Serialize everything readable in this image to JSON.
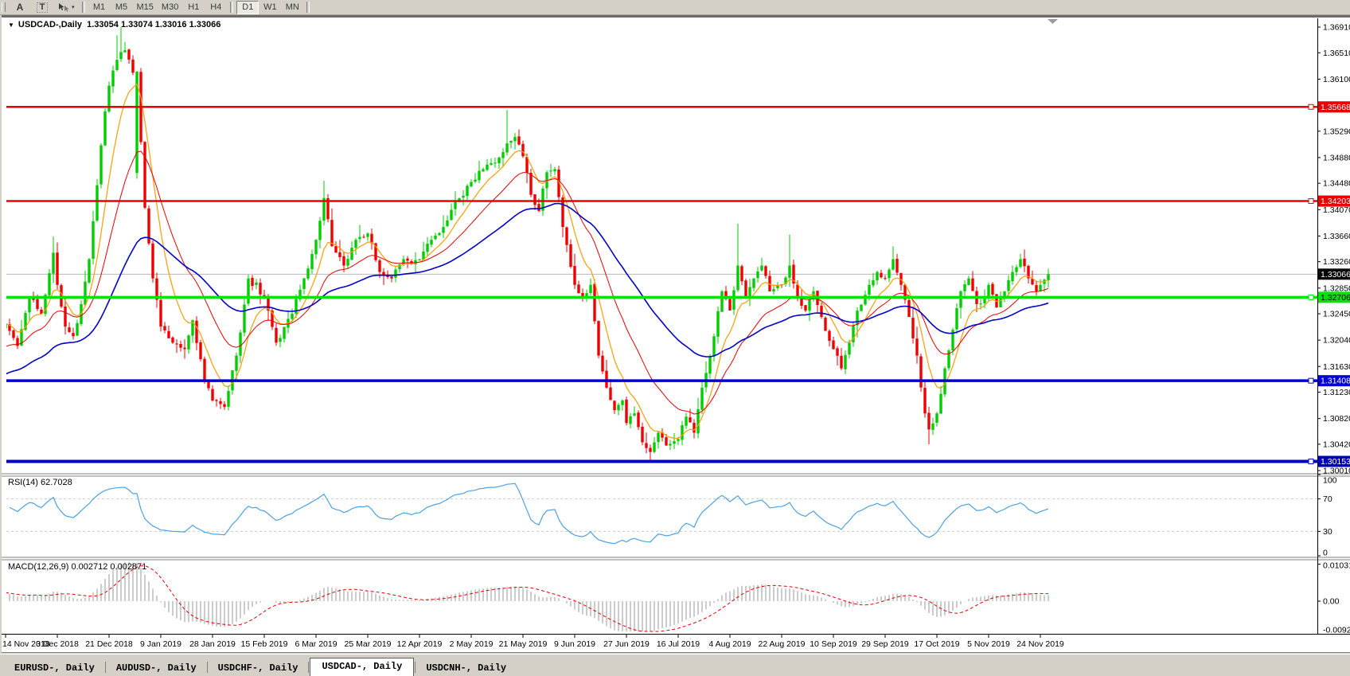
{
  "toolbar": {
    "font_tool": "A",
    "text_tool": "T",
    "timeframes": [
      "M1",
      "M5",
      "M15",
      "M30",
      "H1",
      "H4",
      "D1",
      "W1",
      "MN"
    ],
    "active_timeframe": "D1"
  },
  "window_title": {
    "symbol": "USDCAD-,Daily",
    "ohlc": "1.33054 1.33074 1.33016 1.33066"
  },
  "rsi_panel": {
    "label": "RSI(14) 62.7028",
    "value": 62.7028,
    "line_color": "#4da1e0",
    "level_color": "#cccccc",
    "ticks": [
      {
        "value": 100,
        "label": "100"
      },
      {
        "value": 70,
        "label": "70",
        "dashed": true
      },
      {
        "value": 30,
        "label": "30",
        "dashed": true
      },
      {
        "value": 0,
        "label": "0"
      }
    ]
  },
  "macd_panel": {
    "label": "MACD(12,26,9) 0.002712 0.002871",
    "main_value": 0.002712,
    "signal_value": 0.002871,
    "hist_color": "#c0c0c0",
    "signal_color": "#e00000",
    "ticks": [
      {
        "value": 0.010311,
        "label": "0.010311"
      },
      {
        "value": 0,
        "label": "0.00"
      },
      {
        "value": -0.0092,
        "label": "-0.00920"
      }
    ]
  },
  "time_axis": {
    "labels": [
      "14 Nov 2018",
      "3 Dec 2018",
      "21 Dec 2018",
      "9 Jan 2019",
      "28 Jan 2019",
      "15 Feb 2019",
      "6 Mar 2019",
      "25 Mar 2019",
      "12 Apr 2019",
      "2 May 2019",
      "21 May 2019",
      "9 Jun 2019",
      "27 Jun 2019",
      "16 Jul 2019",
      "4 Aug 2019",
      "22 Aug 2019",
      "10 Sep 2019",
      "29 Sep 2019",
      "17 Oct 2019",
      "5 Nov 2019",
      "24 Nov 2019"
    ]
  },
  "price_axis": {
    "ticks": [
      "1.36910",
      "1.36510",
      "1.36100",
      "1.35290",
      "1.34880",
      "1.34480",
      "1.34070",
      "1.33660",
      "1.33260",
      "1.32850",
      "1.32450",
      "1.32040",
      "1.31630",
      "1.31230",
      "1.30820",
      "1.30420",
      "1.30010"
    ]
  },
  "tabs": {
    "items": [
      "EURUSD-, Daily",
      "AUDUSD-, Daily",
      "USDCHF-, Daily",
      "USDCAD-, Daily",
      "USDCNH-, Daily"
    ],
    "active": "USDCAD-, Daily"
  },
  "chart_data": {
    "type": "candlestick",
    "symbol": "USDCAD-",
    "timeframe": "Daily",
    "last_ohlc": {
      "open": "1.33054",
      "high": "1.33074",
      "low": "1.33016",
      "close": "1.33066"
    },
    "bars": 263,
    "up_color": "#00cd00",
    "down_color": "#ef0000",
    "current_price": {
      "value": 1.33066,
      "label": "1.33066",
      "line_color": "#b8b8b8",
      "box_color": "#000000",
      "text_color": "#ffffff"
    },
    "horizontal_levels": [
      {
        "price": 1.35668,
        "label": "1.35668",
        "color": "#e80000",
        "thickness": 2.5,
        "text_color": "#ffffff"
      },
      {
        "price": 1.34203,
        "label": "1.34203",
        "color": "#e80000",
        "thickness": 2.5,
        "text_color": "#ffffff"
      },
      {
        "price": 1.32706,
        "label": "1.32706",
        "color": "#00e400",
        "thickness": 3.5,
        "text_color": "#000000"
      },
      {
        "price": 1.31408,
        "label": "1.31408",
        "color": "#0000d6",
        "thickness": 3.5,
        "text_color": "#ffffff"
      },
      {
        "price": 1.30153,
        "label": "1.30153",
        "color": "#0000ba",
        "thickness": 4,
        "text_color": "#ffffff"
      }
    ],
    "moving_averages": [
      {
        "name": "fast-ma",
        "period": 8,
        "color": "#ff9c00",
        "width": 1.2,
        "seed": null
      },
      {
        "name": "mid-ma",
        "period": 20,
        "color": "#e40000",
        "width": 1,
        "seed": 1.319
      },
      {
        "name": "slow-ma",
        "period": 50,
        "color": "#0000c8",
        "width": 1.6,
        "seed": 1.3148
      }
    ],
    "close_anchors": [
      [
        0,
        1.323
      ],
      [
        3,
        1.3195
      ],
      [
        6,
        1.327
      ],
      [
        9,
        1.3245
      ],
      [
        12,
        1.334
      ],
      [
        13,
        1.329
      ],
      [
        15,
        1.3225
      ],
      [
        17,
        1.321
      ],
      [
        19,
        1.326
      ],
      [
        21,
        1.333
      ],
      [
        23,
        1.3445
      ],
      [
        25,
        1.356
      ],
      [
        26,
        1.36
      ],
      [
        28,
        1.364
      ],
      [
        30,
        1.3655
      ],
      [
        32,
        1.362
      ],
      [
        33,
        1.3622
      ],
      [
        35,
        1.341
      ],
      [
        37,
        1.33
      ],
      [
        39,
        1.3225
      ],
      [
        42,
        1.32
      ],
      [
        45,
        1.319
      ],
      [
        47,
        1.3235
      ],
      [
        50,
        1.314
      ],
      [
        52,
        1.311
      ],
      [
        55,
        1.31
      ],
      [
        58,
        1.318
      ],
      [
        61,
        1.33
      ],
      [
        65,
        1.327
      ],
      [
        68,
        1.32
      ],
      [
        72,
        1.3245
      ],
      [
        75,
        1.33
      ],
      [
        78,
        1.336
      ],
      [
        80,
        1.3425
      ],
      [
        82,
        1.335
      ],
      [
        85,
        1.332
      ],
      [
        88,
        1.336
      ],
      [
        91,
        1.337
      ],
      [
        94,
        1.331
      ],
      [
        97,
        1.33
      ],
      [
        100,
        1.333
      ],
      [
        104,
        1.333
      ],
      [
        107,
        1.336
      ],
      [
        110,
        1.338
      ],
      [
        113,
        1.342
      ],
      [
        117,
        1.345
      ],
      [
        120,
        1.347
      ],
      [
        123,
        1.348
      ],
      [
        126,
        1.351
      ],
      [
        128,
        1.352
      ],
      [
        130,
        1.349
      ],
      [
        132,
        1.343
      ],
      [
        134,
        1.3405
      ],
      [
        136,
        1.3465
      ],
      [
        138,
        1.347
      ],
      [
        140,
        1.338
      ],
      [
        143,
        1.329
      ],
      [
        145,
        1.327
      ],
      [
        147,
        1.329
      ],
      [
        149,
        1.318
      ],
      [
        151,
        1.313
      ],
      [
        153,
        1.3095
      ],
      [
        155,
        1.311
      ],
      [
        156,
        1.3075
      ],
      [
        158,
        1.309
      ],
      [
        160,
        1.3045
      ],
      [
        162,
        1.303
      ],
      [
        164,
        1.306
      ],
      [
        166,
        1.304
      ],
      [
        169,
        1.305
      ],
      [
        171,
        1.3085
      ],
      [
        173,
        1.306
      ],
      [
        175,
        1.313
      ],
      [
        178,
        1.321
      ],
      [
        180,
        1.328
      ],
      [
        182,
        1.325
      ],
      [
        184,
        1.332
      ],
      [
        186,
        1.327
      ],
      [
        188,
        1.33
      ],
      [
        190,
        1.332
      ],
      [
        192,
        1.328
      ],
      [
        195,
        1.329
      ],
      [
        197,
        1.332
      ],
      [
        199,
        1.327
      ],
      [
        201,
        1.325
      ],
      [
        203,
        1.328
      ],
      [
        205,
        1.324
      ],
      [
        208,
        1.319
      ],
      [
        210,
        1.316
      ],
      [
        212,
        1.32
      ],
      [
        214,
        1.325
      ],
      [
        217,
        1.329
      ],
      [
        219,
        1.331
      ],
      [
        221,
        1.33
      ],
      [
        223,
        1.333
      ],
      [
        225,
        1.329
      ],
      [
        227,
        1.324
      ],
      [
        229,
        1.318
      ],
      [
        231,
        1.309
      ],
      [
        232,
        1.3065
      ],
      [
        234,
        1.309
      ],
      [
        236,
        1.316
      ],
      [
        238,
        1.322
      ],
      [
        240,
        1.328
      ],
      [
        242,
        1.33
      ],
      [
        244,
        1.326
      ],
      [
        246,
        1.327
      ],
      [
        247,
        1.329
      ],
      [
        249,
        1.3255
      ],
      [
        251,
        1.328
      ],
      [
        253,
        1.331
      ],
      [
        255,
        1.333
      ],
      [
        257,
        1.33
      ],
      [
        259,
        1.328
      ],
      [
        260,
        1.329
      ],
      [
        262,
        1.33066
      ]
    ],
    "feature_wicks": [
      {
        "i": 12,
        "h": 1.3365
      },
      {
        "i": 28,
        "h": 1.3678
      },
      {
        "i": 29,
        "h": 1.3691
      },
      {
        "i": 30,
        "h": 1.3668
      },
      {
        "i": 33,
        "l": 1.3455
      },
      {
        "i": 80,
        "h": 1.3452
      },
      {
        "i": 126,
        "h": 1.3562
      },
      {
        "i": 162,
        "l": 1.3016
      },
      {
        "i": 184,
        "h": 1.3385
      },
      {
        "i": 197,
        "h": 1.3368
      },
      {
        "i": 223,
        "h": 1.335
      },
      {
        "i": 232,
        "l": 1.3042
      }
    ],
    "forced_candles": [
      {
        "i": 33,
        "o": 1.3464,
        "c": 1.3622
      }
    ]
  }
}
